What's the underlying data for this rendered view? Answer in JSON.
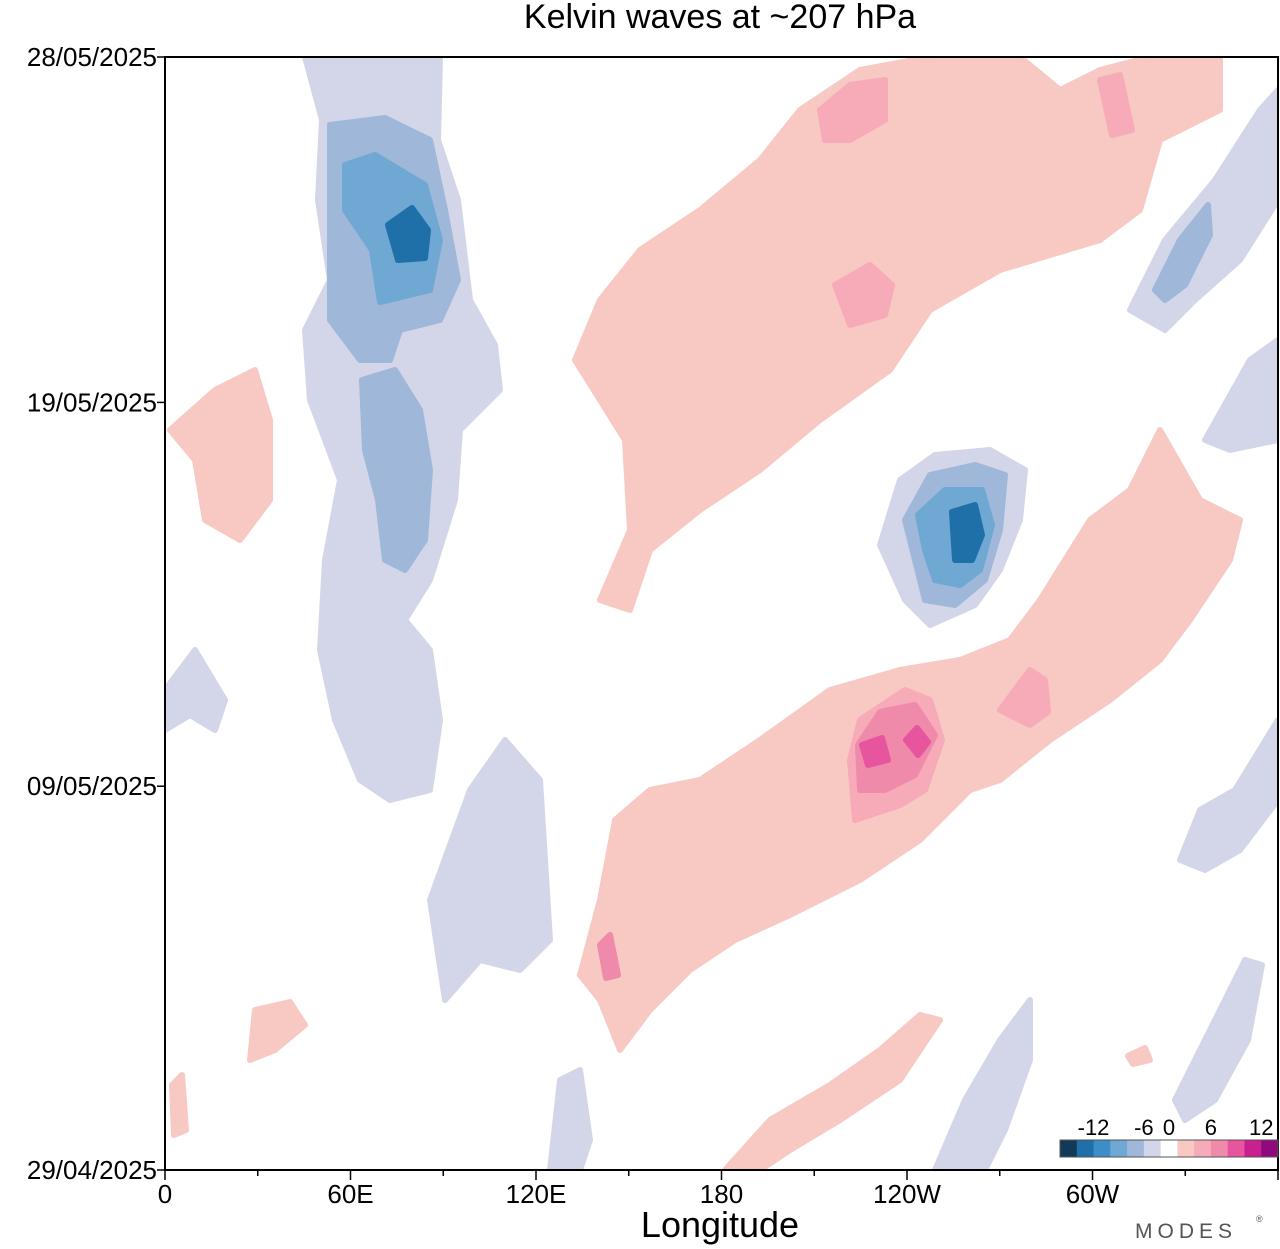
{
  "chart_data": {
    "type": "heatmap",
    "title": "Kelvin waves at ~207 hPa",
    "xlabel": "Longitude",
    "ylabel": "",
    "x_ticks": [
      {
        "lon": 0,
        "label": "0"
      },
      {
        "lon": 60,
        "label": "60E"
      },
      {
        "lon": 120,
        "label": "120E"
      },
      {
        "lon": 180,
        "label": "180"
      },
      {
        "lon": 240,
        "label": "120W"
      },
      {
        "lon": 300,
        "label": "60W"
      }
    ],
    "xlim": [
      0,
      360
    ],
    "y_ticks": [
      "29/04/2025",
      "09/05/2025",
      "19/05/2025",
      "28/05/2025"
    ],
    "ylim": [
      "29/04/2025",
      "28/05/2025"
    ],
    "colorbar": {
      "tick_labels": [
        "-12",
        "-6",
        "0",
        "6",
        "12"
      ],
      "levels": [
        -14,
        -12,
        -10,
        -8,
        -6,
        -4,
        -2,
        2,
        4,
        6,
        8,
        10,
        12,
        14
      ],
      "colors": [
        "#123a57",
        "#1f6fa8",
        "#3c8ec6",
        "#6ea8d3",
        "#9fb7d8",
        "#d3d6e8",
        "#ffffff",
        "#f7c9c2",
        "#f7aab8",
        "#f08aaa",
        "#e6559d",
        "#c8208e",
        "#8f0a7e"
      ]
    },
    "features": [
      {
        "kind": "negative",
        "peak": -10,
        "lon_range": [
          45,
          85
        ],
        "date_range": [
          "10/05/2025",
          "28/05/2025"
        ]
      },
      {
        "kind": "negative",
        "peak": -12,
        "lon_range": [
          240,
          275
        ],
        "date_range": [
          "14/05/2025",
          "18/05/2025"
        ]
      },
      {
        "kind": "positive",
        "peak": 8,
        "lon_range": [
          140,
          350
        ],
        "date_range": [
          "05/05/2025",
          "18/05/2025"
        ]
      },
      {
        "kind": "positive",
        "peak": 6,
        "lon_range": [
          150,
          330
        ],
        "date_range": [
          "17/05/2025",
          "28/05/2025"
        ]
      },
      {
        "kind": "positive",
        "peak": 4,
        "lon_range": [
          170,
          250
        ],
        "date_range": [
          "29/04/2025",
          "03/05/2025"
        ]
      },
      {
        "kind": "negative",
        "peak": -6,
        "lon_range": [
          300,
          360
        ],
        "date_range": [
          "19/05/2025",
          "28/05/2025"
        ]
      },
      {
        "kind": "positive",
        "peak": 2,
        "lon_range": [
          0,
          30
        ],
        "date_range": [
          "16/05/2025",
          "19/05/2025"
        ]
      }
    ]
  },
  "brand": "MODES"
}
